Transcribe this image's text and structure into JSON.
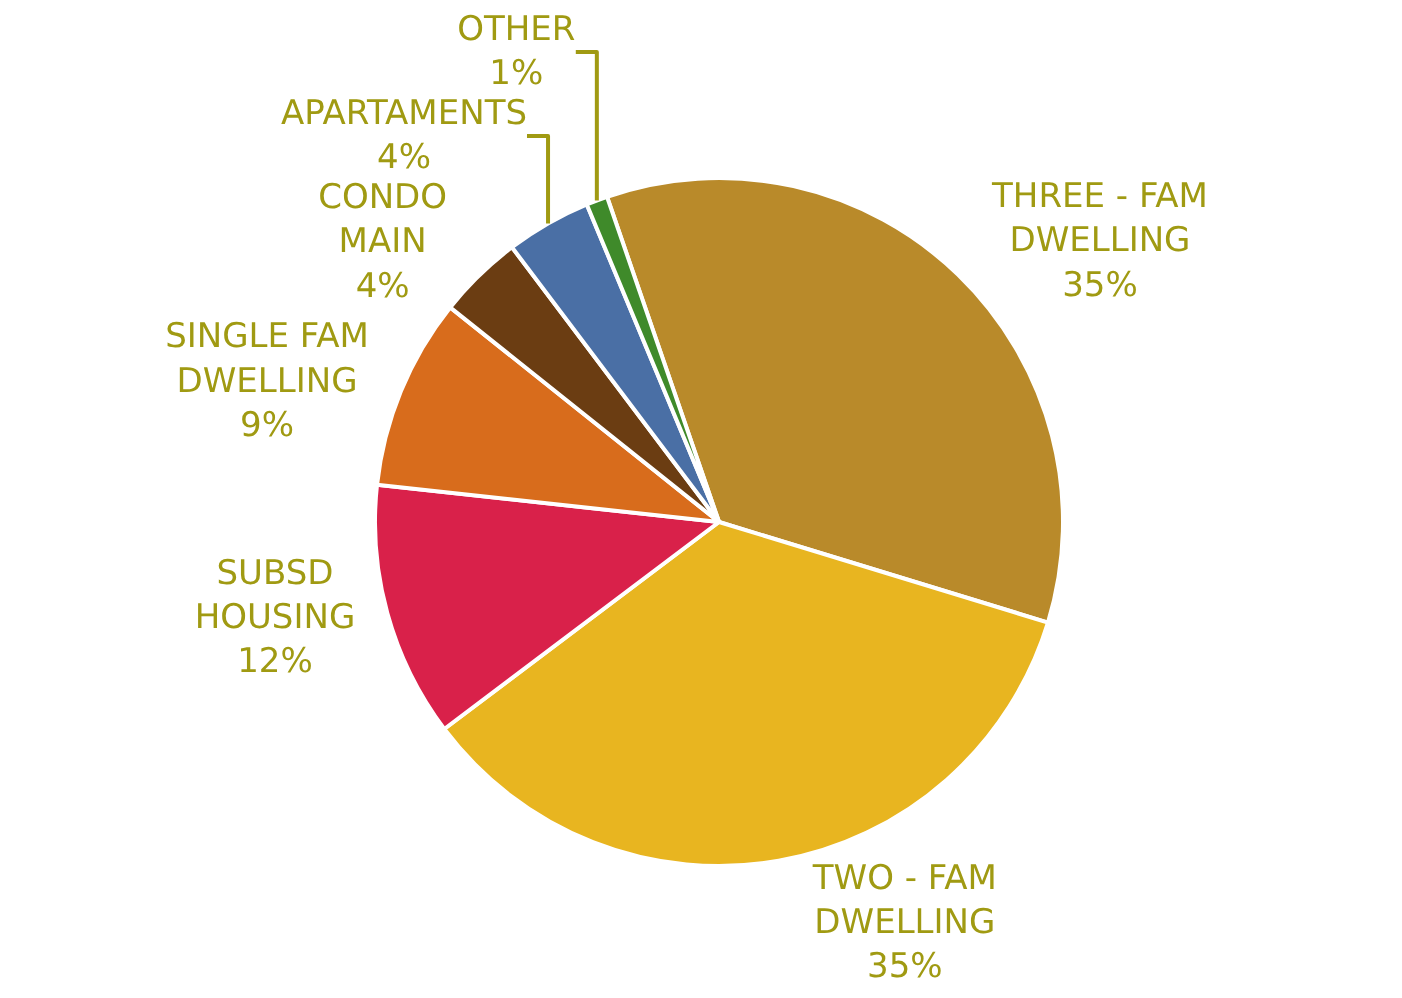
{
  "chart_data": {
    "type": "pie",
    "categories": [
      "THREE - FAM\nDWELLING",
      "TWO - FAM\nDWELLING",
      "SUBSD\nHOUSING",
      "SINGLE FAM\nDWELLING",
      "CONDO\nMAIN",
      "APARTAMENTS",
      "OTHER"
    ],
    "values": [
      35,
      35,
      12,
      9,
      4,
      4,
      1
    ],
    "value_labels": [
      "35%",
      "35%",
      "12%",
      "9%",
      "4%",
      "4%",
      "1%"
    ],
    "colors": [
      "#b98a2a",
      "#e8b520",
      "#d9214a",
      "#d86c1c",
      "#6b3d12",
      "#4a6fa5",
      "#3f8a2a"
    ],
    "legend": false
  }
}
